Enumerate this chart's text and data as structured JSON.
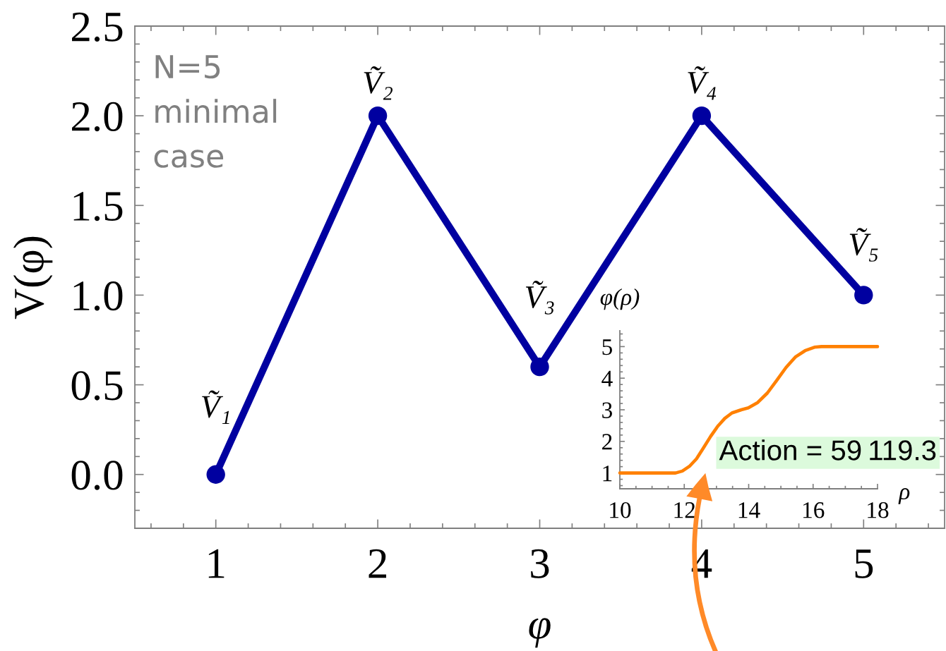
{
  "chart_data": [
    {
      "type": "line",
      "x": [
        1,
        2,
        3,
        4,
        5
      ],
      "values": [
        0,
        2,
        0.6,
        2,
        1
      ],
      "color": "#0000a0",
      "marker": "circle",
      "xlabel": "φ",
      "ylabel": "V(φ)",
      "xlim": [
        0.5,
        5.5
      ],
      "ylim": [
        -0.3,
        2.5
      ],
      "xticks": [
        1,
        2,
        3,
        4,
        5
      ],
      "yticks": [
        {
          "value": 0,
          "label": "0.0"
        },
        0.5,
        {
          "value": 1,
          "label": "1.0"
        },
        1.5,
        {
          "value": 2,
          "label": "2.0"
        },
        2.5
      ],
      "annotations": [
        "N=5\nminimal\ncase",
        {
          "text": "Ṽ₁",
          "x": 1,
          "y": 0
        },
        {
          "text": "Ṽ₂",
          "x": 2,
          "y": 2
        },
        {
          "text": "Ṽ₃",
          "x": 3,
          "y": 0.6
        },
        {
          "text": "Ṽ₄",
          "x": 4,
          "y": 2
        },
        {
          "text": "Ṽ₅",
          "x": 5,
          "y": 1
        }
      ]
    },
    {
      "type": "line",
      "x": [
        10,
        11.73,
        11.94,
        12.16,
        12.38,
        12.6,
        12.82,
        13.04,
        13.26,
        13.48,
        13.77,
        13.99,
        14.28,
        14.58,
        14.87,
        15.16,
        15.45,
        15.75,
        16.04,
        16.26,
        18
      ],
      "values": [
        1,
        1,
        1.06,
        1.21,
        1.45,
        1.8,
        2.16,
        2.48,
        2.73,
        2.9,
        3.0,
        3.06,
        3.23,
        3.53,
        3.93,
        4.34,
        4.67,
        4.87,
        4.98,
        5,
        5
      ],
      "color": "#ff8000",
      "xlabel": "ρ",
      "ylabel": "φ(ρ)",
      "xlim": [
        10,
        18
      ],
      "ylim": [
        0.5,
        5.5
      ],
      "xticks": [
        10,
        12,
        14,
        16,
        18
      ],
      "yticks": [
        1,
        2,
        3,
        4,
        5
      ],
      "annotations": [
        "Action = 59 119.3"
      ]
    }
  ]
}
